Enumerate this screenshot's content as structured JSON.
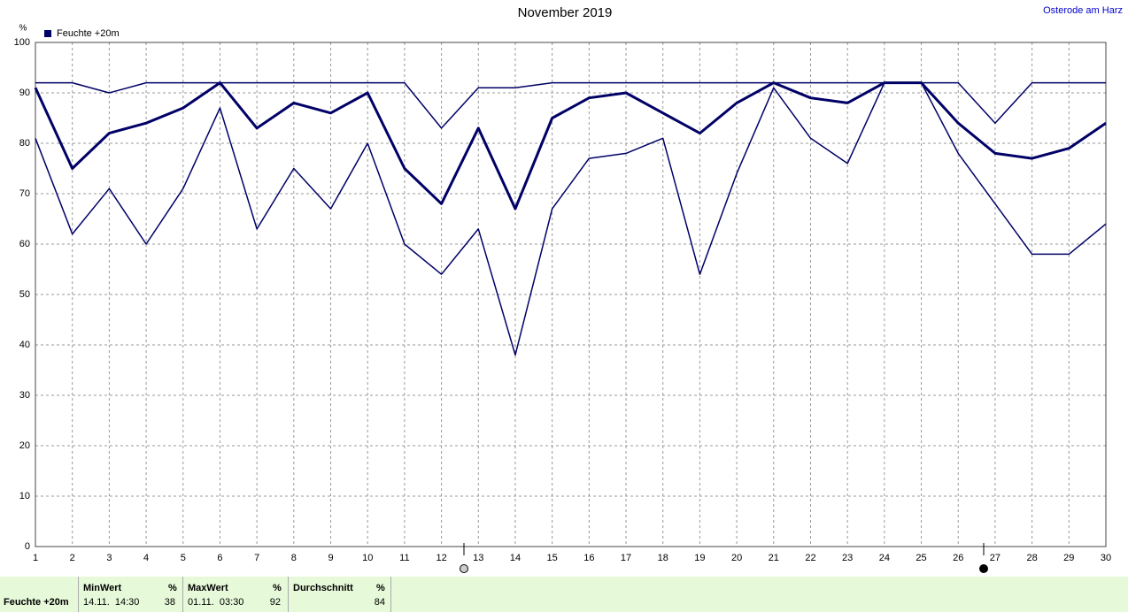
{
  "chart_data": {
    "type": "line",
    "title": "November 2019",
    "location": "Osterode am Harz",
    "y_label": "%",
    "x": [
      1,
      2,
      3,
      4,
      5,
      6,
      7,
      8,
      9,
      10,
      11,
      12,
      13,
      14,
      15,
      16,
      17,
      18,
      19,
      20,
      21,
      22,
      23,
      24,
      25,
      26,
      27,
      28,
      29,
      30
    ],
    "xlim": [
      1,
      30
    ],
    "xticks": [
      1,
      2,
      3,
      4,
      5,
      6,
      7,
      8,
      9,
      10,
      11,
      12,
      13,
      14,
      15,
      16,
      17,
      18,
      19,
      20,
      21,
      22,
      23,
      24,
      25,
      26,
      27,
      28,
      29,
      30
    ],
    "ylim": [
      0,
      100
    ],
    "yticks": [
      0,
      10,
      20,
      30,
      40,
      50,
      60,
      70,
      80,
      90,
      100
    ],
    "grid": true,
    "series": [
      {
        "name": "Feuchte +20m",
        "color": "#000066",
        "max": [
          92,
          92,
          90,
          92,
          92,
          92,
          92,
          92,
          92,
          92,
          92,
          83,
          91,
          91,
          92,
          92,
          92,
          92,
          92,
          92,
          92,
          92,
          92,
          92,
          92,
          92,
          84,
          92,
          92,
          92
        ],
        "mean": [
          91,
          75,
          82,
          84,
          87,
          92,
          83,
          88,
          86,
          90,
          75,
          68,
          83,
          67,
          85,
          89,
          90,
          86,
          82,
          88,
          92,
          89,
          88,
          92,
          92,
          84,
          78,
          77,
          79,
          84
        ],
        "min": [
          81,
          62,
          71,
          60,
          71,
          87,
          63,
          75,
          67,
          80,
          60,
          54,
          63,
          38,
          67,
          77,
          78,
          81,
          54,
          74,
          91,
          81,
          76,
          92,
          92,
          78,
          68,
          58,
          58,
          64
        ]
      }
    ]
  },
  "stats": {
    "label": "Feuchte +20m",
    "columns": [
      {
        "header": "MinWert",
        "unit": "%",
        "time": "14.11.  14:30",
        "value": 38
      },
      {
        "header": "MaxWert",
        "unit": "%",
        "time": "01.11.  03:30",
        "value": 92
      },
      {
        "header": "Durchschnitt",
        "unit": "%",
        "value": 84
      }
    ]
  }
}
